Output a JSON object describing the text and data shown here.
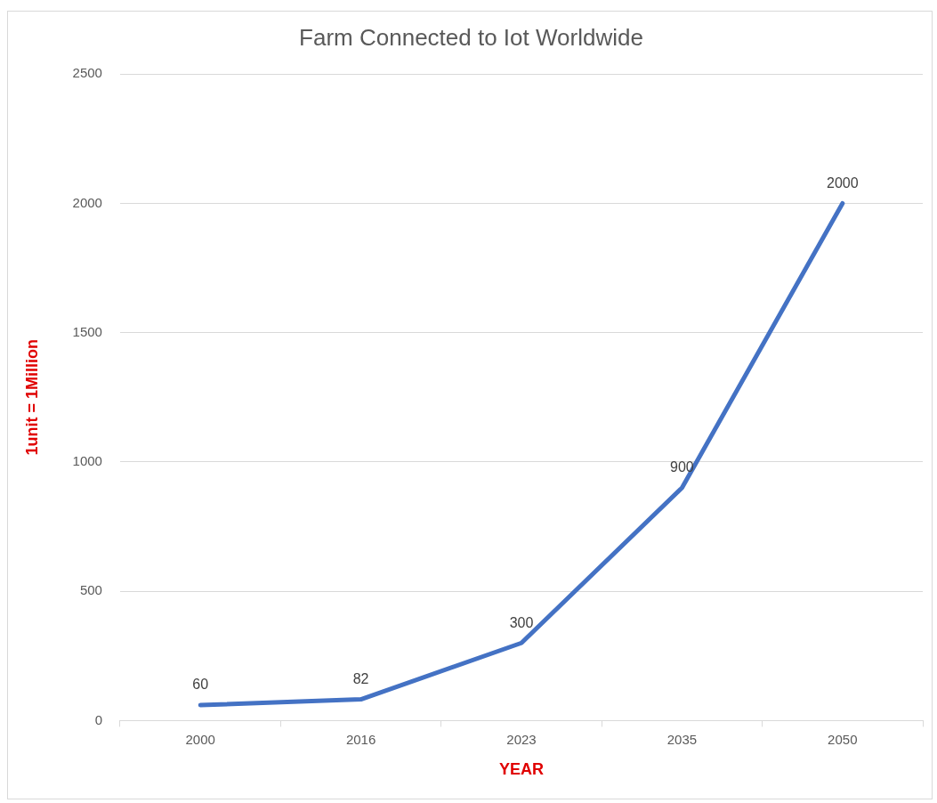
{
  "chart_data": {
    "type": "line",
    "title": "Farm Connected to Iot Worldwide",
    "xlabel": "YEAR",
    "ylabel": "1unit = 1Million",
    "categories": [
      "2000",
      "2016",
      "2023",
      "2035",
      "2050"
    ],
    "values": [
      60,
      82,
      300,
      900,
      2000
    ],
    "color": "#4472c4",
    "ylim": [
      0,
      2500
    ],
    "yticks": [
      0,
      500,
      1000,
      1500,
      2000,
      2500
    ],
    "grid": "y",
    "data_labels": true,
    "marker": "none",
    "line_style": "solid"
  }
}
